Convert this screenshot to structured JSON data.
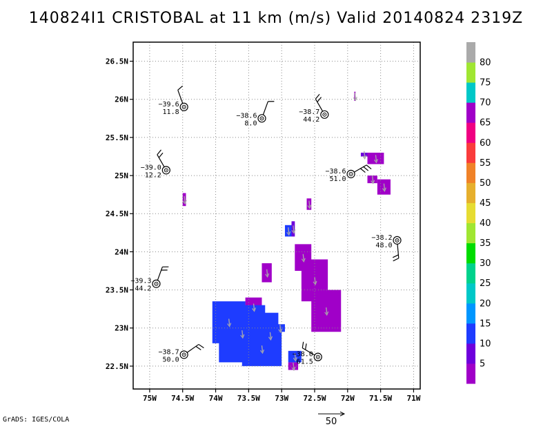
{
  "title": "140824I1 CRISTOBAL at 11 km (m/s) Valid 20140824 2319Z",
  "footer": "GrADS: IGES/COLA",
  "colors": {
    "purple": "#a000c8",
    "violet": "#6e00dc",
    "blue": "#1e3cff",
    "grid": "#888888",
    "arrow": "#aaaaaa"
  },
  "chart_data": {
    "type": "heatmap",
    "title": "140824I1 CRISTOBAL at 11 km (m/s) Valid 20140824 2319Z",
    "xlabel": "",
    "ylabel": "",
    "xlim": [
      -75.25,
      -70.9
    ],
    "ylim": [
      22.2,
      26.75
    ],
    "grid": true,
    "x_ticks": [
      {
        "v": -75.0,
        "label": "75W"
      },
      {
        "v": -74.5,
        "label": "74.5W"
      },
      {
        "v": -74.0,
        "label": "74W"
      },
      {
        "v": -73.5,
        "label": "73.5W"
      },
      {
        "v": -73.0,
        "label": "73W"
      },
      {
        "v": -72.5,
        "label": "72.5W"
      },
      {
        "v": -72.0,
        "label": "72W"
      },
      {
        "v": -71.5,
        "label": "71.5W"
      },
      {
        "v": -71.0,
        "label": "71W"
      }
    ],
    "y_ticks": [
      {
        "v": 22.5,
        "label": "22.5N"
      },
      {
        "v": 23.0,
        "label": "23N"
      },
      {
        "v": 23.5,
        "label": "23.5N"
      },
      {
        "v": 24.0,
        "label": "24N"
      },
      {
        "v": 24.5,
        "label": "24.5N"
      },
      {
        "v": 25.0,
        "label": "25N"
      },
      {
        "v": 25.5,
        "label": "25.5N"
      },
      {
        "v": 26.0,
        "label": "26N"
      },
      {
        "v": 26.5,
        "label": "26.5N"
      }
    ],
    "colorbar": {
      "labels": [
        "5",
        "10",
        "15",
        "20",
        "25",
        "30",
        "35",
        "40",
        "45",
        "50",
        "55",
        "60",
        "65",
        "70",
        "75",
        "80"
      ],
      "colors": [
        "#a000c8",
        "#6e00dc",
        "#1e3cff",
        "#0096ff",
        "#00c8c8",
        "#00d28c",
        "#00dc00",
        "#a0e632",
        "#e6dc32",
        "#e6af2d",
        "#f08228",
        "#fa3c3c",
        "#f00082",
        "#a000c8",
        "#00c8c8",
        "#a0e632",
        "#aaaaaa"
      ]
    },
    "obs": [
      {
        "lon": -74.48,
        "lat": 25.9,
        "t": "−39.6",
        "w": "11.8",
        "dir": 340,
        "flags": 1
      },
      {
        "lon": -73.3,
        "lat": 25.75,
        "t": "−38.6",
        "w": "8.0",
        "dir": 20,
        "flags": 1
      },
      {
        "lon": -72.35,
        "lat": 25.8,
        "t": "−38.7",
        "w": "44.2",
        "dir": 330,
        "flags": 2
      },
      {
        "lon": -74.75,
        "lat": 25.07,
        "t": "−39.0",
        "w": "12.2",
        "dir": 330,
        "flags": 2
      },
      {
        "lon": -71.95,
        "lat": 25.02,
        "t": "−38.6",
        "w": "51.0",
        "dir": 60,
        "flags": 3
      },
      {
        "lon": -71.25,
        "lat": 24.15,
        "t": "−38.2",
        "w": "48.0",
        "dir": 175,
        "flags": 2
      },
      {
        "lon": -74.9,
        "lat": 23.58,
        "t": "−39.3",
        "w": "44.2",
        "dir": 20,
        "flags": 2
      },
      {
        "lon": -74.48,
        "lat": 22.65,
        "t": "−38.7",
        "w": "50.0",
        "dir": 55,
        "flags": 2
      },
      {
        "lon": -72.45,
        "lat": 22.62,
        "t": "−38.0",
        "w": "61.5",
        "dir": 300,
        "flags": 2
      }
    ],
    "regions": [
      {
        "level": "5",
        "color": "#a000c8",
        "cells": [
          [
            -71.9,
            -71.88,
            25.98,
            26.1
          ],
          [
            -71.7,
            -71.45,
            25.15,
            25.3
          ],
          [
            -71.7,
            -71.55,
            24.9,
            25.0
          ],
          [
            -71.55,
            -71.35,
            24.75,
            24.95
          ],
          [
            -74.5,
            -74.45,
            24.6,
            24.77
          ],
          [
            -72.62,
            -72.55,
            24.55,
            24.7
          ],
          [
            -73.3,
            -73.15,
            23.6,
            23.85
          ],
          [
            -72.8,
            -72.55,
            23.75,
            24.1
          ],
          [
            -72.7,
            -72.3,
            23.35,
            23.9
          ],
          [
            -72.55,
            -72.1,
            22.95,
            23.5
          ],
          [
            -73.55,
            -73.3,
            23.15,
            23.4
          ],
          [
            -72.9,
            -72.75,
            22.45,
            22.55
          ]
        ]
      },
      {
        "level": "10",
        "color": "#6e00dc",
        "cells": [
          [
            -72.85,
            -72.8,
            24.2,
            24.4
          ],
          [
            -71.8,
            -71.7,
            25.25,
            25.3
          ]
        ]
      },
      {
        "level": "15",
        "color": "#1e3cff",
        "cells": [
          [
            -74.05,
            -73.55,
            22.8,
            23.35
          ],
          [
            -73.95,
            -73.25,
            22.55,
            23.3
          ],
          [
            -73.3,
            -73.05,
            22.6,
            23.2
          ],
          [
            -73.6,
            -73.0,
            22.5,
            22.95
          ],
          [
            -72.9,
            -72.7,
            22.55,
            22.7
          ],
          [
            -73.1,
            -72.95,
            22.95,
            23.05
          ],
          [
            -72.95,
            -72.85,
            24.2,
            24.35
          ]
        ]
      }
    ],
    "vector_scale": {
      "label": "50"
    }
  }
}
